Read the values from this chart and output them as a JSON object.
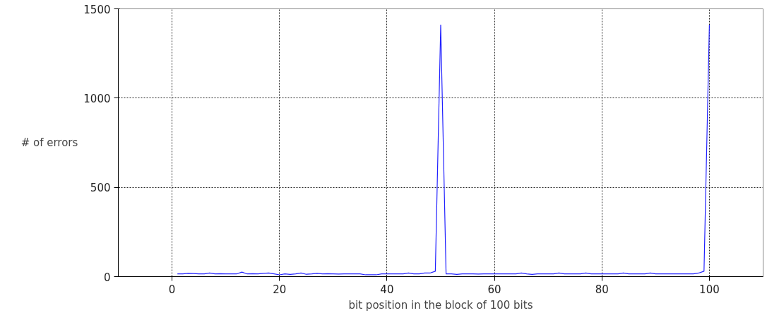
{
  "chart_data": {
    "type": "line",
    "xlabel": "bit position in the block of 100 bits",
    "ylabel": "# of errors",
    "x": [
      1,
      2,
      3,
      4,
      5,
      6,
      7,
      8,
      9,
      10,
      11,
      12,
      13,
      14,
      15,
      16,
      17,
      18,
      19,
      20,
      21,
      22,
      23,
      24,
      25,
      26,
      27,
      28,
      29,
      30,
      31,
      32,
      33,
      34,
      35,
      36,
      37,
      38,
      39,
      40,
      41,
      42,
      43,
      44,
      45,
      46,
      47,
      48,
      49,
      50,
      51,
      52,
      53,
      54,
      55,
      56,
      57,
      58,
      59,
      60,
      61,
      62,
      63,
      64,
      65,
      66,
      67,
      68,
      69,
      70,
      71,
      72,
      73,
      74,
      75,
      76,
      77,
      78,
      79,
      80,
      81,
      82,
      83,
      84,
      85,
      86,
      87,
      88,
      89,
      90,
      91,
      92,
      93,
      94,
      95,
      96,
      97,
      98,
      99,
      100
    ],
    "series": [
      {
        "color": "#2020ff",
        "values": [
          15,
          15,
          18,
          17,
          15,
          15,
          20,
          15,
          16,
          15,
          15,
          15,
          25,
          15,
          16,
          15,
          18,
          20,
          15,
          10,
          15,
          12,
          15,
          20,
          13,
          15,
          18,
          15,
          16,
          15,
          14,
          15,
          15,
          15,
          15,
          10,
          10,
          10,
          15,
          15,
          15,
          15,
          15,
          20,
          15,
          15,
          20,
          20,
          30,
          1410,
          15,
          15,
          12,
          15,
          15,
          15,
          14,
          15,
          15,
          15,
          15,
          15,
          15,
          15,
          20,
          15,
          12,
          15,
          15,
          15,
          15,
          20,
          15,
          15,
          15,
          15,
          20,
          15,
          15,
          15,
          15,
          15,
          15,
          20,
          15,
          15,
          15,
          15,
          20,
          15,
          15,
          15,
          15,
          15,
          15,
          15,
          15,
          20,
          30,
          1410
        ]
      }
    ],
    "xlim": [
      -10,
      110
    ],
    "ylim": [
      0,
      1500
    ],
    "xticks": [
      0,
      20,
      40,
      60,
      80,
      100
    ],
    "yticks": [
      0,
      500,
      1000,
      1500
    ],
    "grid": true,
    "line_style": "solid",
    "marker": "none"
  }
}
